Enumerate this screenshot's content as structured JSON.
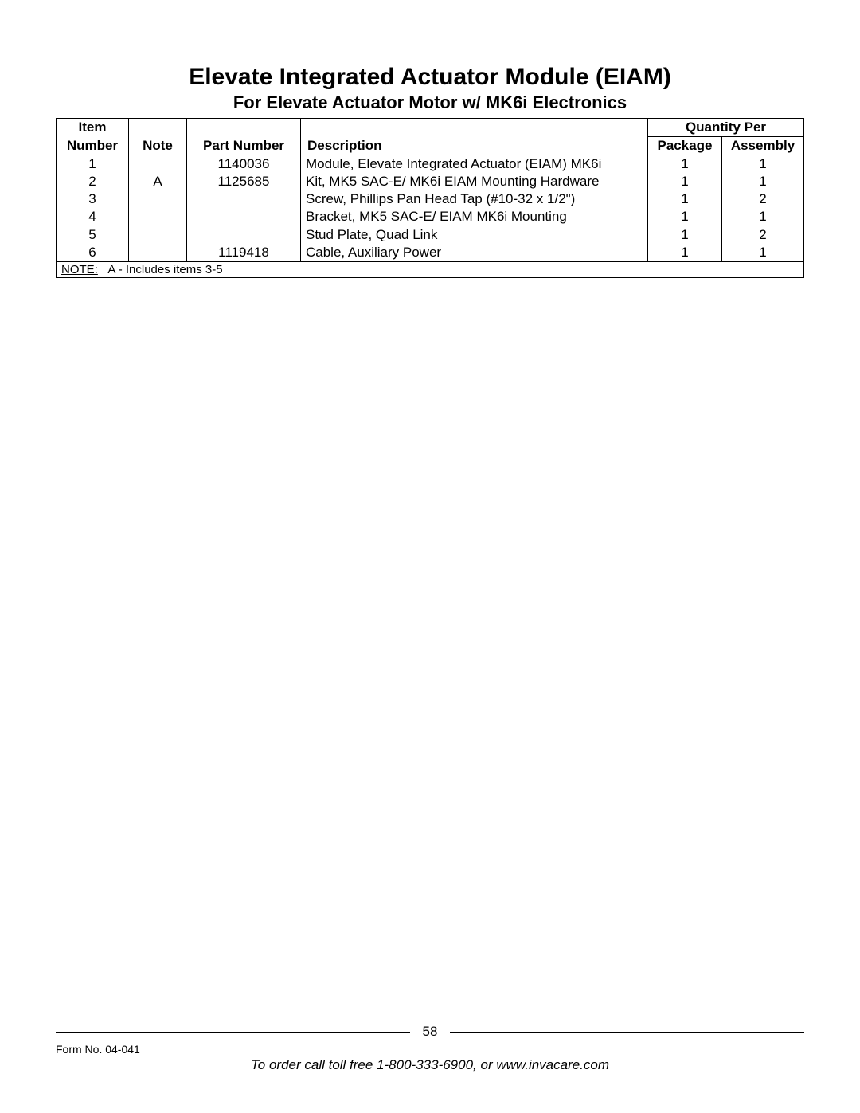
{
  "title": "Elevate Integrated Actuator Module (EIAM)",
  "subtitle": "For Elevate Actuator Motor w/ MK6i Electronics",
  "table": {
    "headers": {
      "item_top": "Item",
      "item_bottom": "Number",
      "note": "Note",
      "part": "Part Number",
      "desc": "Description",
      "qty_group": "Quantity Per",
      "pkg": "Package",
      "asm": "Assembly"
    },
    "rows": [
      {
        "item": "1",
        "note": "",
        "part": "1140036",
        "desc": "Module, Elevate Integrated Actuator (EIAM) MK6i",
        "pkg": "1",
        "asm": "1"
      },
      {
        "item": "2",
        "note": "A",
        "part": "1125685",
        "desc": "Kit, MK5 SAC-E/ MK6i EIAM Mounting Hardware",
        "pkg": "1",
        "asm": "1"
      },
      {
        "item": "3",
        "note": "",
        "part": "",
        "desc": "Screw, Phillips Pan Head Tap (#10-32 x 1/2\")",
        "pkg": "1",
        "asm": "2"
      },
      {
        "item": "4",
        "note": "",
        "part": "",
        "desc": "Bracket, MK5 SAC-E/ EIAM MK6i Mounting",
        "pkg": "1",
        "asm": "1"
      },
      {
        "item": "5",
        "note": "",
        "part": "",
        "desc": "Stud Plate, Quad Link",
        "pkg": "1",
        "asm": "2"
      },
      {
        "item": "6",
        "note": "",
        "part": "1119418",
        "desc": "Cable, Auxiliary Power",
        "pkg": "1",
        "asm": "1"
      }
    ],
    "note_label": "NOTE:",
    "note_text": "A - Includes items 3-5"
  },
  "footer": {
    "page_number": "58",
    "form_no": "Form No. 04-041",
    "order_line": "To order call toll free 1-800-333-6900, or www.invacare.com"
  }
}
